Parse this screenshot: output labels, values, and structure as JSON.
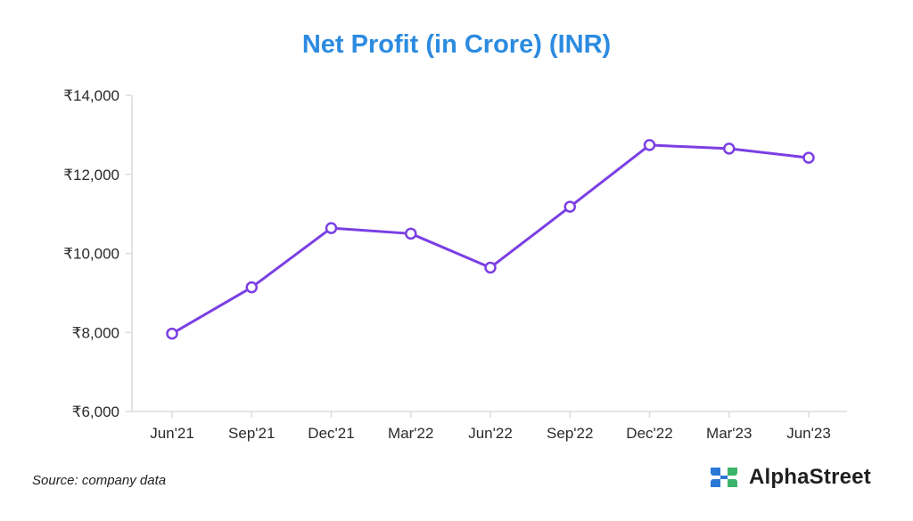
{
  "chart_data": {
    "type": "line",
    "title": "Net Profit (in Crore) (INR)",
    "xlabel": "",
    "ylabel": "",
    "categories": [
      "Jun'21",
      "Sep'21",
      "Dec'21",
      "Mar'22",
      "Jun'22",
      "Sep'22",
      "Dec'22",
      "Mar'23",
      "Jun'23"
    ],
    "series": [
      {
        "values": [
          7970,
          9140,
          10640,
          10500,
          9640,
          11180,
          12740,
          12650,
          12420
        ]
      }
    ],
    "ylim": [
      6000,
      14000
    ],
    "yticks": [
      6000,
      8000,
      10000,
      12000,
      14000
    ],
    "ytick_labels": [
      "₹6,000",
      "₹8,000",
      "₹10,000",
      "₹12,000",
      "₹14,000"
    ],
    "grid": false,
    "line_color": "#7b3fe4",
    "title_color": "#2c8be0"
  },
  "footer": {
    "source": "Source: company data",
    "brand": "AlphaStreet"
  },
  "brand_colors": {
    "blue": "#2a78d6",
    "green": "#3bb36a"
  }
}
